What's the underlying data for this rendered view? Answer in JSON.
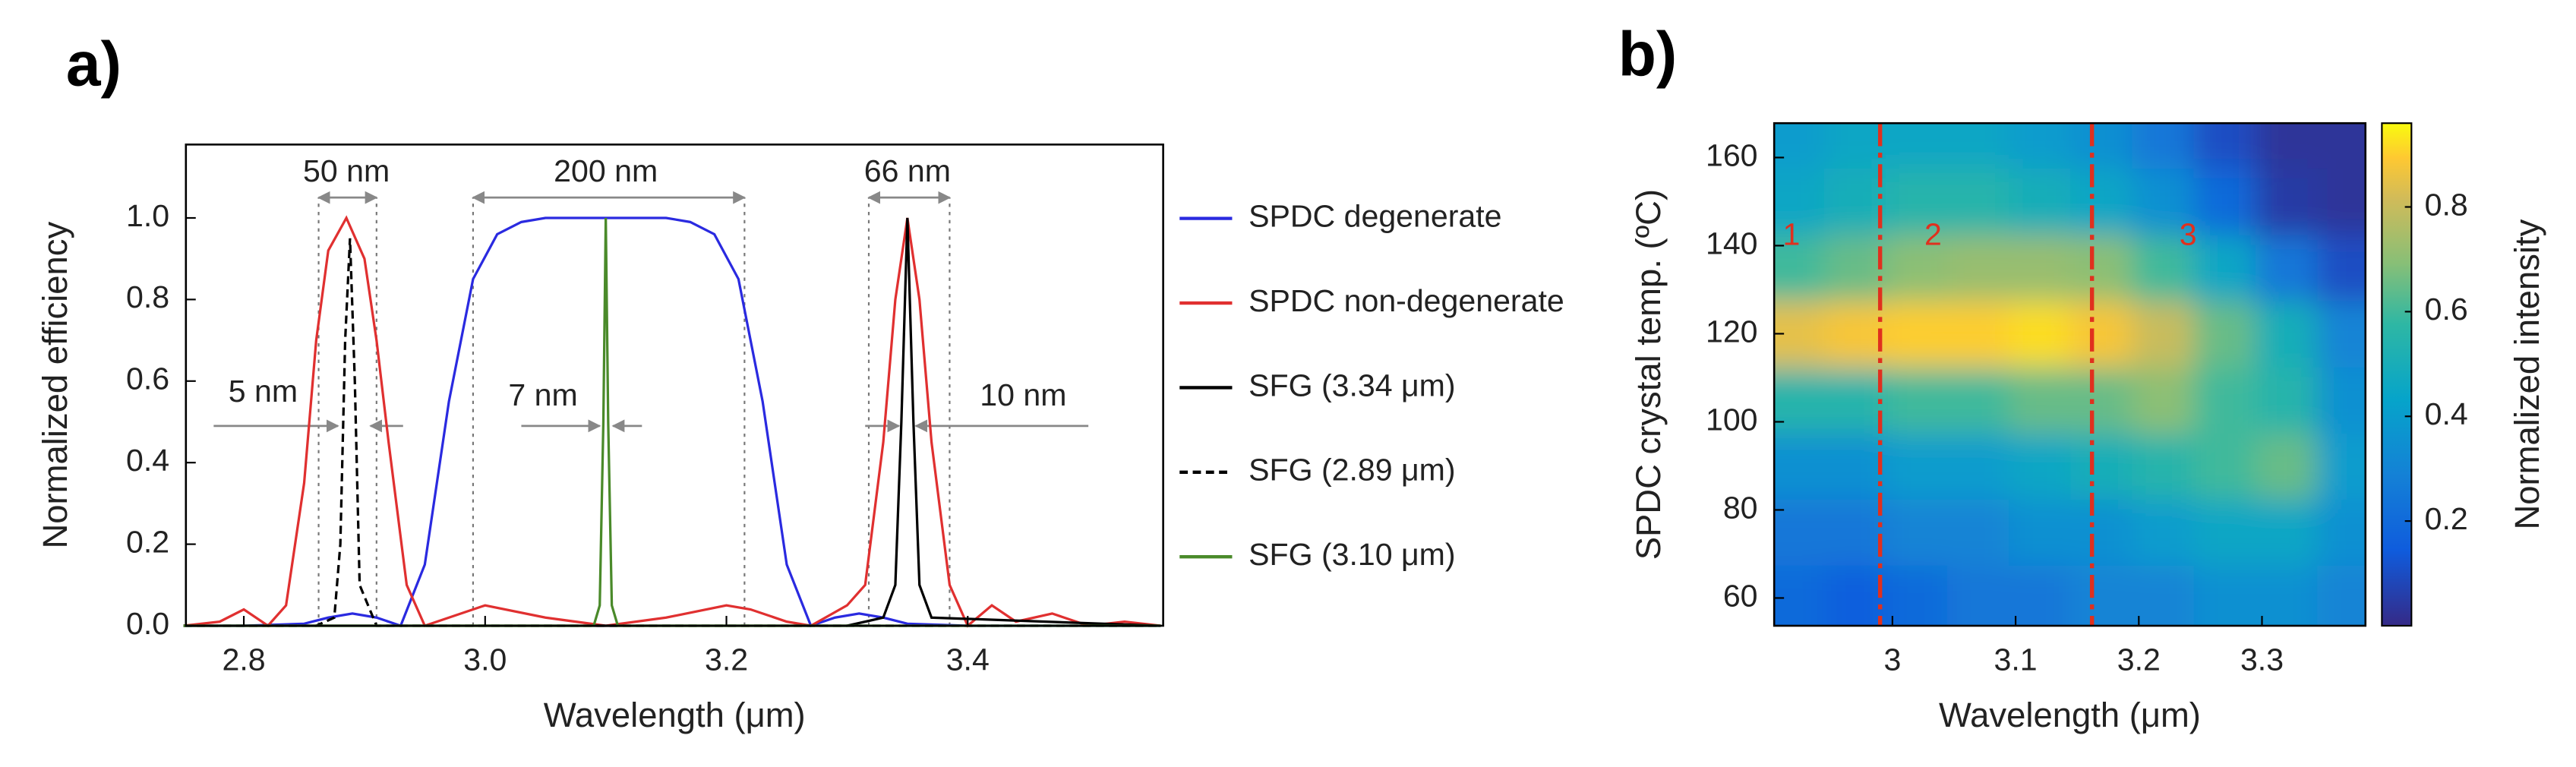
{
  "chart_data": [
    {
      "type": "line",
      "panel_label": "a)",
      "x_label": "Wavelength (μm)",
      "y_label": "Normalized efficiency",
      "xlim": [
        2.752,
        3.562
      ],
      "ylim": [
        0,
        1.18
      ],
      "xticks": [
        2.8,
        {
          "value": 3,
          "label": "3.0"
        },
        3.2,
        3.4
      ],
      "yticks": [
        {
          "value": 0,
          "label": "0.0"
        },
        0.2,
        0.4,
        0.6,
        0.8,
        {
          "value": 1,
          "label": "1.0"
        }
      ],
      "legend": "right",
      "series": [
        {
          "name": "SPDC degenerate",
          "color": "#2a2ae0",
          "linestyle": "solid",
          "x": [
            2.75,
            2.8,
            2.85,
            2.87,
            2.89,
            2.91,
            2.93,
            2.95,
            2.97,
            2.99,
            3.01,
            3.03,
            3.05,
            3.1,
            3.15,
            3.17,
            3.19,
            3.21,
            3.23,
            3.25,
            3.27,
            3.29,
            3.31,
            3.33,
            3.35,
            3.4,
            3.45,
            3.5,
            3.56
          ],
          "values": [
            0,
            0,
            0.005,
            0.02,
            0.03,
            0.02,
            0,
            0.15,
            0.55,
            0.85,
            0.96,
            0.99,
            1,
            1,
            1,
            0.99,
            0.96,
            0.85,
            0.55,
            0.15,
            0,
            0.02,
            0.03,
            0.02,
            0.005,
            0,
            0,
            0,
            0
          ]
        },
        {
          "name": "SPDC non-degenerate",
          "color": "#e03030",
          "linestyle": "solid",
          "x": [
            2.75,
            2.78,
            2.8,
            2.82,
            2.835,
            2.85,
            2.86,
            2.87,
            2.885,
            2.9,
            2.91,
            2.92,
            2.935,
            2.95,
            2.97,
            3.0,
            3.05,
            3.1,
            3.15,
            3.2,
            3.22,
            3.25,
            3.27,
            3.3,
            3.315,
            3.33,
            3.34,
            3.35,
            3.36,
            3.37,
            3.385,
            3.4,
            3.42,
            3.44,
            3.47,
            3.5,
            3.53,
            3.56
          ],
          "values": [
            0,
            0.01,
            0.04,
            0,
            0.05,
            0.35,
            0.7,
            0.92,
            1,
            0.9,
            0.7,
            0.45,
            0.1,
            0,
            0.02,
            0.05,
            0.02,
            0,
            0.02,
            0.05,
            0.04,
            0.01,
            0,
            0.05,
            0.1,
            0.45,
            0.8,
            1,
            0.8,
            0.45,
            0.1,
            0,
            0.05,
            0.01,
            0.03,
            0,
            0.01,
            0
          ]
        },
        {
          "name": "SFG (3.34 μm)",
          "color": "#000000",
          "linestyle": "solid",
          "x": [
            2.75,
            3.3,
            3.33,
            3.34,
            3.345,
            3.35,
            3.355,
            3.36,
            3.37,
            3.56
          ],
          "values": [
            0,
            0,
            0.02,
            0.1,
            0.5,
            1,
            0.5,
            0.1,
            0.02,
            0
          ]
        },
        {
          "name": "SFG (2.89 μm)",
          "color": "#000000",
          "linestyle": "dashed",
          "x": [
            2.75,
            2.86,
            2.875,
            2.88,
            2.884,
            2.888,
            2.892,
            2.896,
            2.91,
            3.56
          ],
          "values": [
            0,
            0,
            0.02,
            0.2,
            0.7,
            0.95,
            0.6,
            0.1,
            0,
            0
          ]
        },
        {
          "name": "SFG (3.10 μm)",
          "color": "#4a8a2a",
          "linestyle": "solid",
          "x": [
            2.75,
            3.09,
            3.095,
            3.098,
            3.1,
            3.102,
            3.105,
            3.11,
            3.56
          ],
          "values": [
            0,
            0,
            0.05,
            0.5,
            1,
            0.5,
            0.05,
            0,
            0
          ]
        }
      ],
      "annotations": [
        {
          "text": "50 nm",
          "x": 2.885,
          "y": 1.11
        },
        {
          "text": "200 nm",
          "x": 3.1,
          "y": 1.11
        },
        {
          "text": "66 nm",
          "x": 3.35,
          "y": 1.11
        },
        {
          "text": "5 nm",
          "x": 2.816,
          "y": 0.57
        },
        {
          "text": "7 nm",
          "x": 3.048,
          "y": 0.56
        },
        {
          "text": "10 nm",
          "x": 3.446,
          "y": 0.56
        }
      ]
    },
    {
      "type": "heatmap",
      "panel_label": "b)",
      "x_label": "Wavelength (μm)",
      "y_label": "SPDC crystal temp. (ºC)",
      "colorbar_label": "Normalized intensity",
      "xlim": [
        2.904,
        3.384
      ],
      "ylim": [
        53.7,
        167.8
      ],
      "xticks": [
        3,
        3.1,
        3.2,
        3.3
      ],
      "yticks": [
        60,
        80,
        100,
        120,
        140,
        160
      ],
      "clim": [
        0,
        0.96
      ],
      "cticks": [
        0.2,
        0.4,
        0.6,
        0.8
      ],
      "x": [
        2.92,
        2.97,
        3.02,
        3.07,
        3.12,
        3.17,
        3.22,
        3.27,
        3.32,
        3.37
      ],
      "y": [
        60,
        75,
        90,
        105,
        120,
        135,
        150,
        165
      ],
      "values": [
        [
          0.2,
          0.15,
          0.2,
          0.25,
          0.25,
          0.3,
          0.3,
          0.35,
          0.35,
          0.3
        ],
        [
          0.25,
          0.25,
          0.3,
          0.3,
          0.35,
          0.35,
          0.4,
          0.45,
          0.45,
          0.35
        ],
        [
          0.35,
          0.35,
          0.4,
          0.4,
          0.45,
          0.5,
          0.55,
          0.6,
          0.65,
          0.4
        ],
        [
          0.55,
          0.55,
          0.6,
          0.6,
          0.65,
          0.65,
          0.7,
          0.6,
          0.55,
          0.35
        ],
        [
          0.85,
          0.88,
          0.9,
          0.9,
          0.92,
          0.88,
          0.8,
          0.65,
          0.5,
          0.3
        ],
        [
          0.6,
          0.65,
          0.7,
          0.72,
          0.72,
          0.7,
          0.6,
          0.45,
          0.25,
          0.1
        ],
        [
          0.45,
          0.5,
          0.55,
          0.55,
          0.5,
          0.45,
          0.35,
          0.2,
          0.05,
          0.03
        ],
        [
          0.4,
          0.45,
          0.45,
          0.45,
          0.4,
          0.35,
          0.25,
          0.1,
          0.03,
          0.03
        ]
      ],
      "vlines": [
        2.99,
        3.162
      ],
      "vline_color": "#e0301e",
      "annotations": [
        {
          "text": "1",
          "x": 2.918,
          "y": 142
        },
        {
          "text": "2",
          "x": 3.033,
          "y": 142
        },
        {
          "text": "3",
          "x": 3.24,
          "y": 142
        }
      ]
    }
  ]
}
